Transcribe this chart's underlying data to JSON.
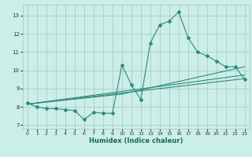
{
  "xlabel": "Humidex (Indice chaleur)",
  "background_color": "#cceee8",
  "grid_color": "#aacccc",
  "line_color": "#2e8b7a",
  "xlim": [
    -0.5,
    23.5
  ],
  "ylim": [
    6.8,
    13.6
  ],
  "yticks": [
    7,
    8,
    9,
    10,
    11,
    12,
    13
  ],
  "xticks": [
    0,
    1,
    2,
    3,
    4,
    5,
    6,
    7,
    8,
    9,
    10,
    11,
    12,
    13,
    14,
    15,
    16,
    17,
    18,
    19,
    20,
    21,
    22,
    23
  ],
  "xticklabels": [
    "0",
    "1",
    "2",
    "3",
    "4",
    "5",
    "6",
    "7",
    "8",
    "9",
    "10",
    "11",
    "12",
    "13",
    "14",
    "15",
    "16",
    "17",
    "18",
    "19",
    "20",
    "21",
    "22",
    "23"
  ],
  "series_main": {
    "x": [
      0,
      1,
      2,
      3,
      4,
      5,
      6,
      7,
      8,
      9,
      10,
      11,
      12,
      13,
      14,
      15,
      16,
      17,
      18,
      19,
      20,
      21,
      22,
      23
    ],
    "y": [
      8.2,
      8.0,
      7.9,
      7.9,
      7.85,
      7.8,
      7.3,
      7.7,
      7.65,
      7.65,
      10.3,
      9.2,
      8.4,
      11.5,
      12.5,
      12.7,
      13.2,
      11.8,
      11.0,
      10.8,
      10.5,
      10.2,
      10.2,
      9.5
    ]
  },
  "reg_line1": {
    "x": [
      0,
      23
    ],
    "y": [
      8.15,
      9.55
    ]
  },
  "reg_line2": {
    "x": [
      0,
      23
    ],
    "y": [
      8.15,
      9.75
    ]
  },
  "reg_line3": {
    "x": [
      0,
      10,
      23
    ],
    "y": [
      8.15,
      8.7,
      10.2
    ]
  }
}
